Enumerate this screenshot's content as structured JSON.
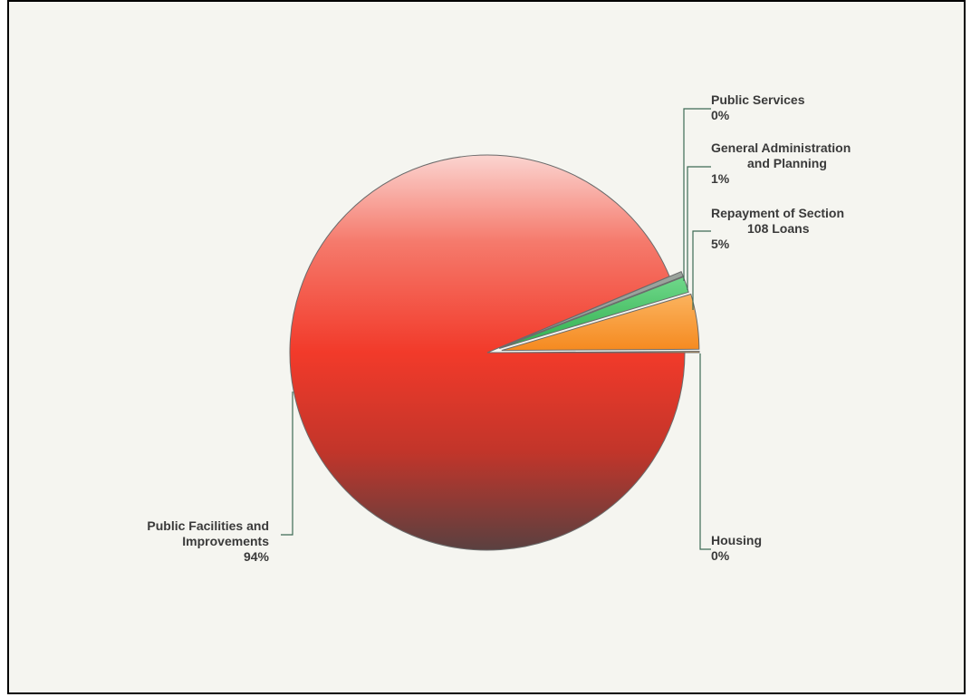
{
  "chart_data": {
    "type": "pie",
    "title": "",
    "slices": [
      {
        "label": "Public Facilities and Improvements",
        "lines": [
          "Public Facilities and",
          "Improvements"
        ],
        "percent_label": "94%",
        "value": 93.7,
        "color": "#f03a28"
      },
      {
        "label": "Public Services",
        "lines": [
          "Public Services"
        ],
        "percent_label": "0%",
        "value": 0.4,
        "color": "#9aa39c"
      },
      {
        "label": "General Administration and Planning",
        "lines": [
          "General Administration",
          "and Planning"
        ],
        "percent_label": "1%",
        "value": 1.3,
        "color": "#3fbf5a"
      },
      {
        "label": "Repayment of Section 108 Loans",
        "lines": [
          "Repayment of Section",
          "108 Loans"
        ],
        "percent_label": "5%",
        "value": 4.5,
        "color": "#f7942a"
      },
      {
        "label": "Housing",
        "lines": [
          "Housing"
        ],
        "percent_label": "0%",
        "value": 0.1,
        "color": "#e8a040"
      }
    ],
    "legend": "none"
  }
}
